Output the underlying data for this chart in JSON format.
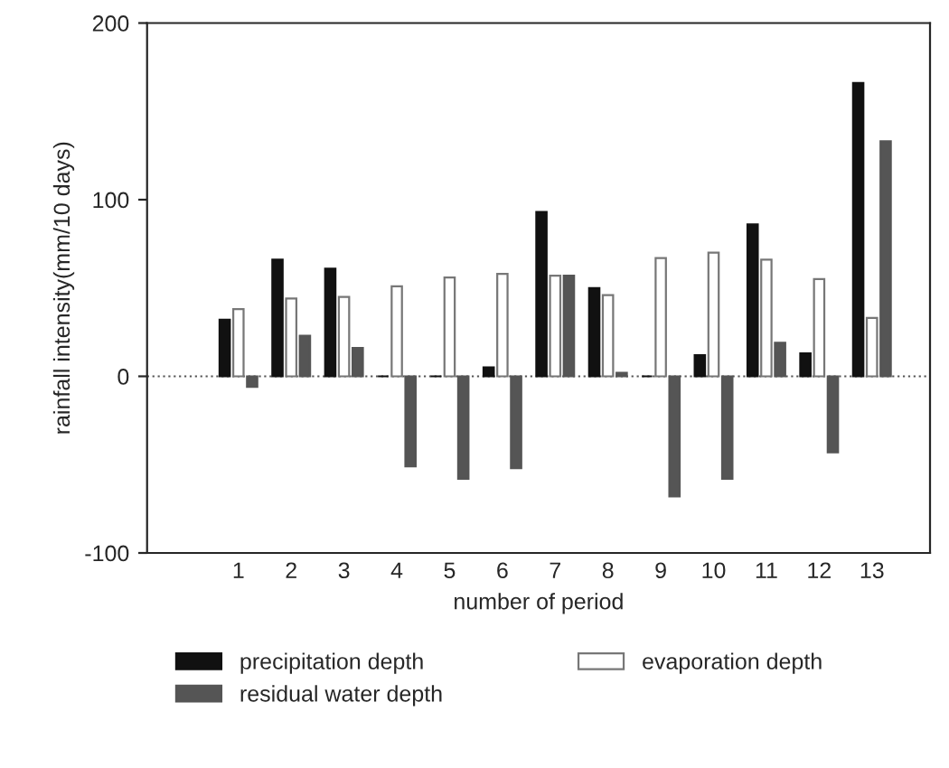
{
  "chart_data": {
    "type": "bar",
    "xlabel": "number of period",
    "ylabel": "rainfall intensity(mm/10 days)",
    "categories": [
      "1",
      "2",
      "3",
      "4",
      "5",
      "6",
      "7",
      "8",
      "9",
      "10",
      "11",
      "12",
      "13"
    ],
    "series": [
      {
        "name": "precipitation depth",
        "color": "#111111",
        "values": [
          32,
          66,
          61,
          0,
          0,
          5,
          93,
          50,
          0,
          12,
          86,
          13,
          166
        ]
      },
      {
        "name": "evaporation depth",
        "color": "#ffffff",
        "values": [
          38,
          44,
          45,
          51,
          56,
          58,
          57,
          46,
          67,
          70,
          66,
          55,
          33
        ]
      },
      {
        "name": "residual water depth",
        "color": "#555555",
        "values": [
          -6,
          23,
          16,
          -51,
          -58,
          -52,
          57,
          2,
          -68,
          -58,
          19,
          -43,
          133
        ]
      }
    ],
    "ylim": [
      -100,
      200
    ],
    "yticks": [
      {
        "value": -100,
        "label": "-100"
      },
      0,
      100,
      200
    ],
    "ref_lines": [
      {
        "axis": "y",
        "value": 0,
        "line_style": "dotted",
        "color": "#555555"
      }
    ],
    "legend": "bottom",
    "grid": false
  }
}
